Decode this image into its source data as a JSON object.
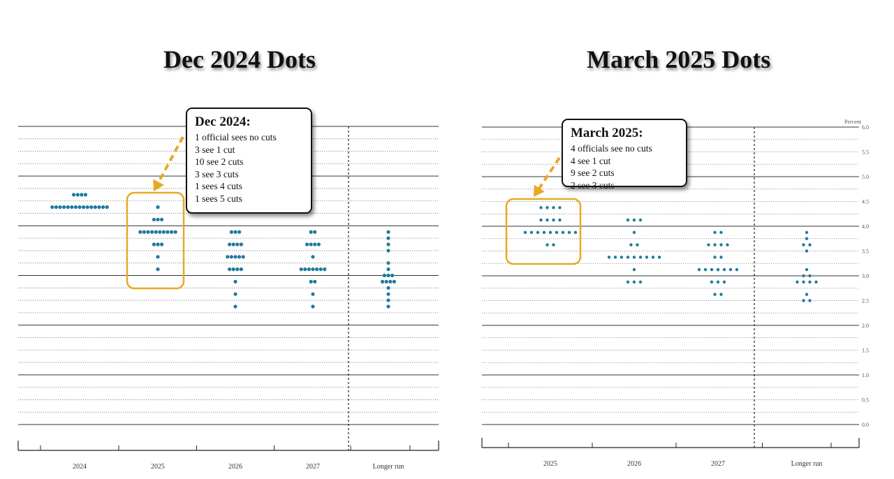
{
  "titles": {
    "left": "Dec 2024 Dots",
    "right": "March 2025 Dots"
  },
  "colors": {
    "dot": "#1f7a9c",
    "highlight": "#e8a925",
    "arrow": "#e8a925"
  },
  "annotations": {
    "left": {
      "heading": "Dec 2024:",
      "lines": [
        "1 official sees no cuts",
        "3 see 1 cut",
        "10 see 2 cuts",
        "3 see 3 cuts",
        "1 sees 4 cuts",
        "1 sees 5 cuts"
      ]
    },
    "right": {
      "heading": "March 2025:",
      "lines": [
        "4 officials see no cuts",
        "4 see 1 cut",
        "9 see 2 cuts",
        "2 see 3 cuts"
      ]
    }
  },
  "chart_data": [
    {
      "type": "scatter",
      "title": "Dec 2024 Dots",
      "categories": [
        "2024",
        "2025",
        "2026",
        "2027",
        "Longer run"
      ],
      "ylim": [
        0,
        6
      ],
      "grid": true,
      "y_tick_labels_visible": false,
      "highlight_category": "2025",
      "dots": [
        {
          "category": "2024",
          "values": [
            {
              "y": 4.625,
              "count": 4
            },
            {
              "y": 4.375,
              "count": 15
            }
          ]
        },
        {
          "category": "2025",
          "values": [
            {
              "y": 4.375,
              "count": 1
            },
            {
              "y": 4.125,
              "count": 3
            },
            {
              "y": 3.875,
              "count": 10
            },
            {
              "y": 3.625,
              "count": 3
            },
            {
              "y": 3.375,
              "count": 1
            },
            {
              "y": 3.125,
              "count": 1
            }
          ]
        },
        {
          "category": "2026",
          "values": [
            {
              "y": 3.875,
              "count": 3
            },
            {
              "y": 3.625,
              "count": 4
            },
            {
              "y": 3.375,
              "count": 5
            },
            {
              "y": 3.125,
              "count": 4
            },
            {
              "y": 2.875,
              "count": 1
            },
            {
              "y": 2.625,
              "count": 1
            },
            {
              "y": 2.375,
              "count": 1
            }
          ]
        },
        {
          "category": "2027",
          "values": [
            {
              "y": 3.875,
              "count": 2
            },
            {
              "y": 3.625,
              "count": 4
            },
            {
              "y": 3.375,
              "count": 1
            },
            {
              "y": 3.125,
              "count": 7
            },
            {
              "y": 2.875,
              "count": 2
            },
            {
              "y": 2.625,
              "count": 1
            },
            {
              "y": 2.375,
              "count": 1
            }
          ]
        },
        {
          "category": "Longer run",
          "values": [
            {
              "y": 3.875,
              "count": 1
            },
            {
              "y": 3.75,
              "count": 1
            },
            {
              "y": 3.625,
              "count": 1
            },
            {
              "y": 3.5,
              "count": 1
            },
            {
              "y": 3.25,
              "count": 1
            },
            {
              "y": 3.125,
              "count": 1
            },
            {
              "y": 3.0,
              "count": 3
            },
            {
              "y": 2.875,
              "count": 4
            },
            {
              "y": 2.75,
              "count": 1
            },
            {
              "y": 2.625,
              "count": 1
            },
            {
              "y": 2.5,
              "count": 1
            },
            {
              "y": 2.375,
              "count": 1
            }
          ]
        }
      ]
    },
    {
      "type": "scatter",
      "title": "March 2025 Dots",
      "ylabel": "Percent",
      "categories": [
        "2025",
        "2026",
        "2027",
        "Longer run"
      ],
      "ylim": [
        0,
        6
      ],
      "y_ticks": [
        "0.0",
        "0.5",
        "1.0",
        "1.5",
        "2.0",
        "2.5",
        "3.0",
        "3.5",
        "4.0",
        "4.5",
        "5.0",
        "5.5",
        "6.0"
      ],
      "grid": true,
      "highlight_category": "2025",
      "dots": [
        {
          "category": "2025",
          "values": [
            {
              "y": 4.375,
              "count": 4
            },
            {
              "y": 4.125,
              "count": 4
            },
            {
              "y": 3.875,
              "count": 9
            },
            {
              "y": 3.625,
              "count": 2
            }
          ]
        },
        {
          "category": "2026",
          "values": [
            {
              "y": 4.125,
              "count": 3
            },
            {
              "y": 3.875,
              "count": 1
            },
            {
              "y": 3.625,
              "count": 2
            },
            {
              "y": 3.375,
              "count": 9
            },
            {
              "y": 3.125,
              "count": 1
            },
            {
              "y": 2.875,
              "count": 3
            }
          ]
        },
        {
          "category": "2027",
          "values": [
            {
              "y": 3.875,
              "count": 2
            },
            {
              "y": 3.625,
              "count": 4
            },
            {
              "y": 3.375,
              "count": 2
            },
            {
              "y": 3.125,
              "count": 7
            },
            {
              "y": 2.875,
              "count": 3
            },
            {
              "y": 2.625,
              "count": 2
            }
          ]
        },
        {
          "category": "Longer run",
          "values": [
            {
              "y": 3.875,
              "count": 1
            },
            {
              "y": 3.75,
              "count": 1
            },
            {
              "y": 3.625,
              "count": 2
            },
            {
              "y": 3.5,
              "count": 1
            },
            {
              "y": 3.125,
              "count": 1
            },
            {
              "y": 3.0,
              "count": 2
            },
            {
              "y": 2.875,
              "count": 4
            },
            {
              "y": 2.625,
              "count": 1
            },
            {
              "y": 2.5,
              "count": 2
            }
          ]
        }
      ]
    }
  ]
}
